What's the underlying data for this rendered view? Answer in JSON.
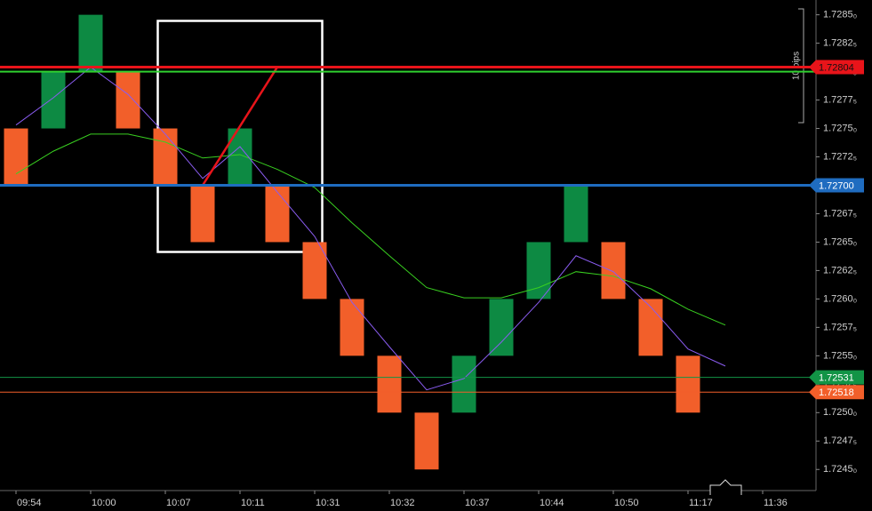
{
  "chart_data": {
    "type": "renko",
    "categories": [
      "09:54",
      null,
      "10:00",
      null,
      "10:07",
      null,
      "10:11",
      null,
      "10:31",
      null,
      "10:32",
      null,
      "10:37",
      null,
      "10:44",
      null,
      "10:50",
      null,
      "11:17",
      null,
      "11:36"
    ],
    "open": [
      1.7275,
      1.7275,
      1.728,
      1.728,
      1.7275,
      1.727,
      1.727,
      1.727,
      1.7265,
      1.726,
      1.7255,
      1.725,
      1.725,
      1.7255,
      1.726,
      1.7265,
      1.7265,
      1.726,
      1.7255,
      null,
      null
    ],
    "close": [
      1.727,
      1.728,
      1.7285,
      1.7275,
      1.727,
      1.7265,
      1.7275,
      1.7265,
      1.726,
      1.7255,
      1.725,
      1.7245,
      1.7255,
      1.726,
      1.7265,
      1.727,
      1.726,
      1.7255,
      1.725,
      null,
      null
    ],
    "up_color": "#0d8a43",
    "down_color": "#f25f2a",
    "series": [
      {
        "color": "#39d020",
        "values": [
          1.7271,
          1.7273,
          1.72745,
          1.72745,
          1.72738,
          1.72724,
          1.72727,
          1.72714,
          1.72698,
          1.72667,
          1.72638,
          1.7261,
          1.72601,
          1.72601,
          1.7261,
          1.72624,
          1.7262,
          1.72609,
          1.72591,
          1.72577,
          null
        ]
      },
      {
        "color": "#8a5cf0",
        "values": [
          1.72753,
          1.72777,
          1.72804,
          1.7278,
          1.72745,
          1.72706,
          1.72734,
          1.72694,
          1.72655,
          1.72597,
          1.72558,
          1.7252,
          1.7253,
          1.72562,
          1.72597,
          1.72638,
          1.72624,
          1.72593,
          1.72556,
          1.72541,
          null
        ]
      }
    ],
    "horizontal_lines": [
      {
        "value": 1.72804,
        "label": "1.72804",
        "color": "#e8141a",
        "width": 3
      },
      {
        "value": 1.728,
        "color": "#2fd02f",
        "width": 2
      },
      {
        "value": 1.727,
        "label": "1.72700",
        "color": "#1f6cc0",
        "width": 3
      },
      {
        "value": 1.72531,
        "label": "1.72531",
        "color": "#129446",
        "width": 1
      },
      {
        "value": 1.72518,
        "label": "1.72518",
        "color": "#f25f2a",
        "width": 1
      }
    ],
    "pips_label": "10 pips",
    "ylim": [
      1.72433,
      1.72863
    ],
    "yticks": [
      {
        "value": 1.7285,
        "label": "1.7285₀"
      },
      {
        "value": 1.72825,
        "label": "1.7282₅"
      },
      {
        "value": 1.728,
        "label": "1.7280₀"
      },
      {
        "value": 1.72775,
        "label": "1.7277₅"
      },
      {
        "value": 1.7275,
        "label": "1.7275₀"
      },
      {
        "value": 1.72725,
        "label": "1.7272₅"
      },
      {
        "value": 1.727,
        "label": "1.7270₀"
      },
      {
        "value": 1.72675,
        "label": "1.7267₅"
      },
      {
        "value": 1.7265,
        "label": "1.7265₀"
      },
      {
        "value": 1.72625,
        "label": "1.7262₅"
      },
      {
        "value": 1.726,
        "label": "1.7260₀"
      },
      {
        "value": 1.72575,
        "label": "1.7257₅"
      },
      {
        "value": 1.7255,
        "label": "1.7255₀"
      },
      {
        "value": 1.72525,
        "label": "1.7252₅"
      },
      {
        "value": 1.725,
        "label": "1.7250₀"
      },
      {
        "value": 1.72475,
        "label": "1.7247₅"
      },
      {
        "value": 1.7245,
        "label": "1.7245₀"
      }
    ]
  }
}
